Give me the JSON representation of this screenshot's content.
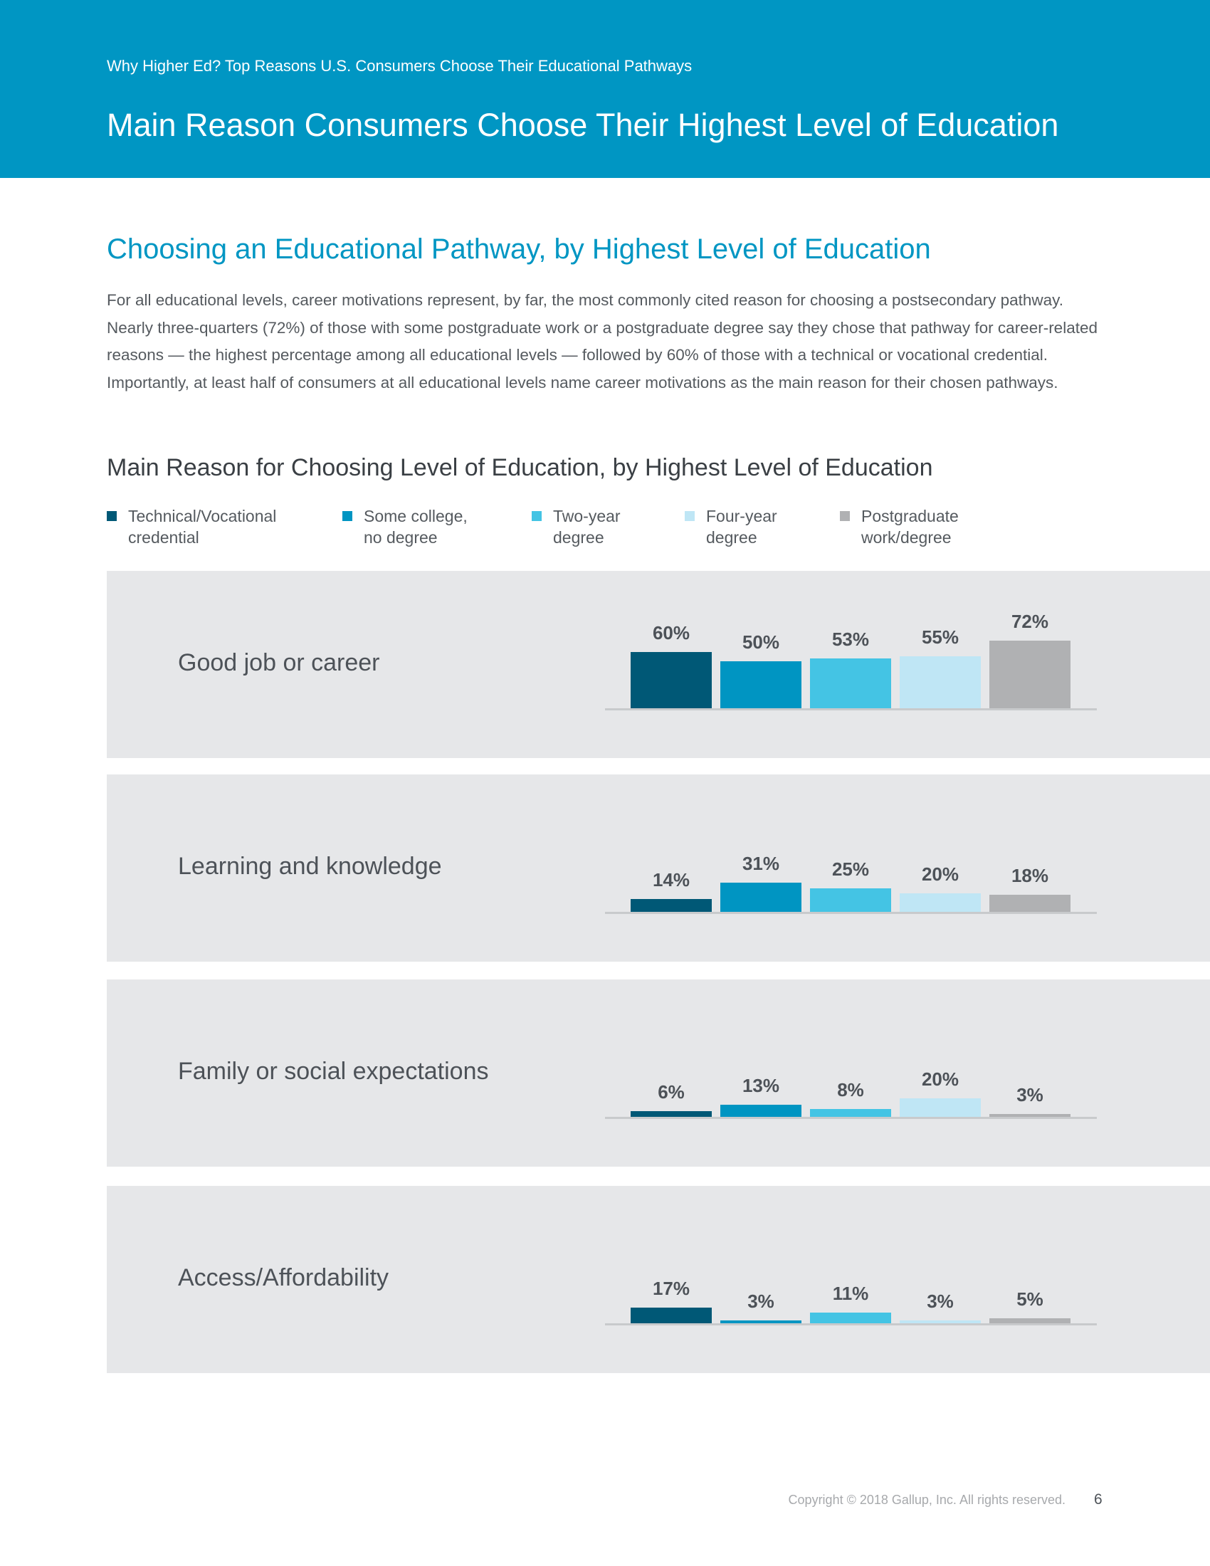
{
  "header": {
    "kicker": "Why Higher Ed? Top Reasons U.S. Consumers Choose Their Educational Pathways",
    "title": "Main Reason Consumers Choose Their Highest Level of Education"
  },
  "section": {
    "heading": "Choosing an Educational Pathway, by Highest Level of Education",
    "paragraph": "For all educational levels, career motivations represent, by far, the most commonly cited reason for choosing a postsecondary pathway. Nearly three-quarters (72%) of those with some postgraduate work or a postgraduate degree say they chose that pathway for career-related reasons — the highest percentage among all educational levels — followed by 60% of those with a technical or vocational credential. Importantly, at least half of consumers at all educational levels name career motivations as the main reason for their chosen pathways."
  },
  "chart_data": {
    "type": "bar",
    "title": "Main Reason for Choosing Level of Education, by Highest Level of Education",
    "categories": [
      "Good job or career",
      "Learning and knowledge",
      "Family or social expectations",
      "Access/Affordability"
    ],
    "series": [
      {
        "name": "Technical/Vocational credential",
        "color": "#005876",
        "values": [
          60,
          14,
          6,
          17
        ]
      },
      {
        "name": "Some college, no degree",
        "color": "#0095c2",
        "values": [
          50,
          31,
          13,
          3
        ]
      },
      {
        "name": "Two-year degree",
        "color": "#44c4e4",
        "values": [
          53,
          25,
          8,
          11
        ]
      },
      {
        "name": "Four-year degree",
        "color": "#bfe6f5",
        "values": [
          55,
          20,
          20,
          3
        ]
      },
      {
        "name": "Postgraduate work/degree",
        "color": "#b0b1b3",
        "values": [
          72,
          18,
          3,
          5
        ]
      }
    ],
    "unit": "%",
    "legend_position": "top",
    "grid": false,
    "ylim": [
      0,
      100
    ]
  },
  "footer": {
    "copyright": "Copyright © 2018 Gallup, Inc. All rights reserved.",
    "page": "6"
  }
}
